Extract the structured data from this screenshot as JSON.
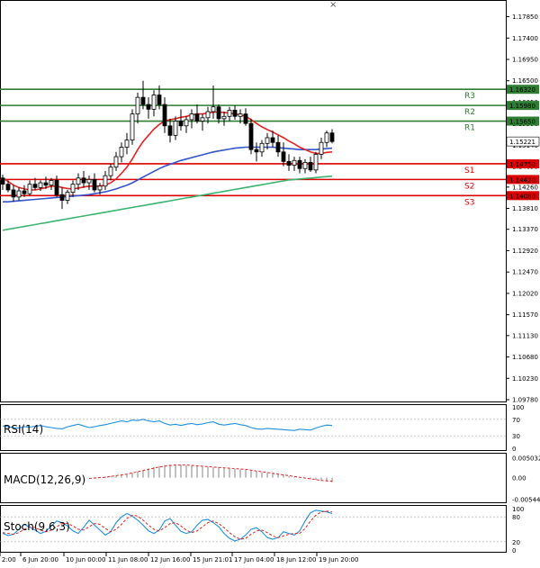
{
  "window_close": "×",
  "chart_data": [
    {
      "type": "candlestick",
      "panel": "price",
      "y_ticks": [
        "1.17850",
        "1.17400",
        "1.16950",
        "1.16500",
        "1.16050",
        "1.15590",
        "1.15140",
        "1.14690",
        "1.14260",
        "1.13810",
        "1.13370",
        "1.12920",
        "1.12470",
        "1.12020",
        "1.11570",
        "1.11130",
        "1.10680",
        "1.10230",
        "1.09780"
      ],
      "ylim": [
        1.0978,
        1.1805
      ],
      "current_price": "1.15221",
      "levels": [
        {
          "name": "R3",
          "tag": "1.16320",
          "value": 1.1632,
          "color": "#2e7d32"
        },
        {
          "name": "R2",
          "tag": "1.15980",
          "value": 1.1598,
          "color": "#2e7d32"
        },
        {
          "name": "R1",
          "tag": "1.15650",
          "value": 1.1565,
          "color": "#2e7d32"
        },
        {
          "name": "S1",
          "tag": "1.14750",
          "value": 1.1475,
          "color": "#dd0000"
        },
        {
          "name": "S2",
          "tag": "1.14420",
          "value": 1.1442,
          "color": "#dd0000"
        },
        {
          "name": "S3",
          "tag": "1.14080",
          "value": 1.1408,
          "color": "#dd0000"
        }
      ],
      "candles": [
        [
          1.1445,
          1.1452,
          1.142,
          1.1432
        ],
        [
          1.1432,
          1.144,
          1.1415,
          1.142
        ],
        [
          1.142,
          1.143,
          1.1395,
          1.1405
        ],
        [
          1.1405,
          1.1425,
          1.1398,
          1.1418
        ],
        [
          1.1418,
          1.143,
          1.1405,
          1.1412
        ],
        [
          1.1412,
          1.144,
          1.1408,
          1.1432
        ],
        [
          1.1432,
          1.1445,
          1.142,
          1.1425
        ],
        [
          1.1425,
          1.144,
          1.1418,
          1.1435
        ],
        [
          1.1435,
          1.1448,
          1.1422,
          1.143
        ],
        [
          1.143,
          1.1445,
          1.142,
          1.144
        ],
        [
          1.144,
          1.145,
          1.1405,
          1.141
        ],
        [
          1.141,
          1.1425,
          1.138,
          1.1398
        ],
        [
          1.1398,
          1.142,
          1.139,
          1.1415
        ],
        [
          1.1415,
          1.144,
          1.1405,
          1.1432
        ],
        [
          1.1432,
          1.1455,
          1.142,
          1.1445
        ],
        [
          1.1445,
          1.146,
          1.1425,
          1.1435
        ],
        [
          1.1435,
          1.145,
          1.142,
          1.1442
        ],
        [
          1.1442,
          1.1455,
          1.1415,
          1.142
        ],
        [
          1.142,
          1.1435,
          1.141,
          1.1428
        ],
        [
          1.1428,
          1.146,
          1.142,
          1.145
        ],
        [
          1.145,
          1.1475,
          1.144,
          1.1468
        ],
        [
          1.1468,
          1.15,
          1.146,
          1.149
        ],
        [
          1.149,
          1.152,
          1.1478,
          1.151
        ],
        [
          1.151,
          1.154,
          1.1495,
          1.1525
        ],
        [
          1.1525,
          1.159,
          1.1515,
          1.158
        ],
        [
          1.158,
          1.1625,
          1.156,
          1.1615
        ],
        [
          1.1615,
          1.165,
          1.159,
          1.16
        ],
        [
          1.16,
          1.1615,
          1.157,
          1.159
        ],
        [
          1.159,
          1.163,
          1.1575,
          1.162
        ],
        [
          1.162,
          1.164,
          1.159,
          1.16
        ],
        [
          1.16,
          1.1615,
          1.154,
          1.1555
        ],
        [
          1.1555,
          1.157,
          1.152,
          1.1535
        ],
        [
          1.1535,
          1.1575,
          1.1525,
          1.1565
        ],
        [
          1.1565,
          1.159,
          1.1545,
          1.1555
        ],
        [
          1.1555,
          1.1575,
          1.154,
          1.1568
        ],
        [
          1.1568,
          1.159,
          1.155,
          1.158
        ],
        [
          1.158,
          1.16,
          1.156,
          1.1565
        ],
        [
          1.1565,
          1.158,
          1.1545,
          1.1572
        ],
        [
          1.1572,
          1.1595,
          1.156,
          1.1585
        ],
        [
          1.1585,
          1.164,
          1.157,
          1.1595
        ],
        [
          1.1595,
          1.16,
          1.156,
          1.157
        ],
        [
          1.157,
          1.1585,
          1.1555,
          1.1575
        ],
        [
          1.1575,
          1.1595,
          1.1565,
          1.1588
        ],
        [
          1.1588,
          1.1598,
          1.1568,
          1.1575
        ],
        [
          1.1575,
          1.159,
          1.156,
          1.158
        ],
        [
          1.158,
          1.1592,
          1.1555,
          1.156
        ],
        [
          1.156,
          1.157,
          1.1495,
          1.1505
        ],
        [
          1.1505,
          1.152,
          1.148,
          1.15
        ],
        [
          1.15,
          1.1525,
          1.149,
          1.1518
        ],
        [
          1.1518,
          1.154,
          1.1505,
          1.153
        ],
        [
          1.153,
          1.1545,
          1.151,
          1.152
        ],
        [
          1.152,
          1.1535,
          1.149,
          1.15
        ],
        [
          1.15,
          1.152,
          1.147,
          1.148
        ],
        [
          1.148,
          1.1495,
          1.146,
          1.1472
        ],
        [
          1.1472,
          1.149,
          1.146,
          1.1482
        ],
        [
          1.1482,
          1.149,
          1.1455,
          1.1465
        ],
        [
          1.1465,
          1.1485,
          1.1455,
          1.1478
        ],
        [
          1.1478,
          1.149,
          1.1458,
          1.1462
        ],
        [
          1.1462,
          1.15,
          1.1455,
          1.1495
        ],
        [
          1.1495,
          1.153,
          1.1485,
          1.152
        ],
        [
          1.152,
          1.1545,
          1.151,
          1.154
        ],
        [
          1.154,
          1.1548,
          1.1518,
          1.1522
        ]
      ],
      "sma_fast": [
        1.1445,
        1.1438,
        1.143,
        1.1425,
        1.1422,
        1.142,
        1.142,
        1.1422,
        1.1425,
        1.1428,
        1.1428,
        1.1425,
        1.1423,
        1.1422,
        1.1424,
        1.1426,
        1.1428,
        1.1428,
        1.1428,
        1.143,
        1.1435,
        1.1443,
        1.1455,
        1.1468,
        1.1485,
        1.1505,
        1.1522,
        1.1535,
        1.1548,
        1.1558,
        1.1565,
        1.1568,
        1.157,
        1.1573,
        1.1575,
        1.1578,
        1.158,
        1.158,
        1.1582,
        1.1584,
        1.1584,
        1.1583,
        1.1582,
        1.158,
        1.1578,
        1.1575,
        1.1568,
        1.156,
        1.1553,
        1.1547,
        1.1542,
        1.1536,
        1.153,
        1.1523,
        1.1517,
        1.151,
        1.1505,
        1.15,
        1.1497,
        1.1497,
        1.1499,
        1.15
      ],
      "sma_mid": [
        1.1395,
        1.1395,
        1.1396,
        1.1397,
        1.1398,
        1.1399,
        1.14,
        1.1401,
        1.1402,
        1.1403,
        1.1404,
        1.1405,
        1.1406,
        1.1407,
        1.1408,
        1.1409,
        1.141,
        1.1412,
        1.1414,
        1.1416,
        1.1419,
        1.1422,
        1.1426,
        1.143,
        1.1435,
        1.1441,
        1.1447,
        1.1453,
        1.1459,
        1.1465,
        1.147,
        1.1474,
        1.1478,
        1.1482,
        1.1485,
        1.1488,
        1.1491,
        1.1494,
        1.1497,
        1.15,
        1.1502,
        1.1504,
        1.1506,
        1.1508,
        1.1509,
        1.151,
        1.151,
        1.151,
        1.151,
        1.151,
        1.151,
        1.1509,
        1.1508,
        1.1507,
        1.1506,
        1.1505,
        1.1505,
        1.1505,
        1.1505,
        1.1506,
        1.1507,
        1.1508
      ],
      "sma_slow": [
        1.1335,
        1.1337,
        1.1339,
        1.1341,
        1.1343,
        1.1345,
        1.1347,
        1.1349,
        1.1351,
        1.1353,
        1.1355,
        1.1357,
        1.1359,
        1.1361,
        1.1363,
        1.1365,
        1.1367,
        1.1369,
        1.1371,
        1.1373,
        1.1375,
        1.1377,
        1.1379,
        1.1381,
        1.1383,
        1.1385,
        1.1387,
        1.1389,
        1.1391,
        1.1393,
        1.1395,
        1.1397,
        1.1399,
        1.1401,
        1.1403,
        1.1405,
        1.1407,
        1.1409,
        1.1411,
        1.1413,
        1.1415,
        1.1417,
        1.1419,
        1.1421,
        1.1423,
        1.1425,
        1.1427,
        1.1429,
        1.1431,
        1.1433,
        1.1435,
        1.1437,
        1.1439,
        1.1441,
        1.1442,
        1.1443,
        1.1444,
        1.1445,
        1.1446,
        1.1447,
        1.1448,
        1.1449
      ]
    },
    {
      "type": "line",
      "panel": "rsi",
      "label": "RSI(14)",
      "y_ticks": [
        "100",
        "70",
        "30",
        "0"
      ],
      "ylim": [
        0,
        100
      ],
      "values": [
        54,
        52,
        50,
        49,
        52,
        51,
        53,
        55,
        52,
        50,
        48,
        47,
        52,
        55,
        58,
        54,
        50,
        52,
        55,
        57,
        60,
        63,
        66,
        64,
        68,
        67,
        70,
        66,
        64,
        66,
        60,
        56,
        58,
        55,
        58,
        60,
        57,
        59,
        62,
        64,
        58,
        56,
        58,
        60,
        57,
        55,
        50,
        47,
        46,
        48,
        47,
        46,
        45,
        44,
        43,
        46,
        45,
        44,
        49,
        53,
        56,
        55
      ]
    },
    {
      "type": "bar",
      "panel": "macd",
      "label": "MACD(12,26,9)",
      "y_ticks": [
        "0.005032",
        "0.00",
        "-0.005441"
      ],
      "ylim": [
        -0.0058,
        0.0054
      ],
      "values": [
        0.0,
        0.0001,
        0.0002,
        0.0003,
        0.0004,
        0.0005,
        0.0007,
        0.0009,
        0.0012,
        0.0015,
        0.0019,
        0.0023,
        0.0027,
        0.003,
        0.0032,
        0.0033,
        0.0033,
        0.0032,
        0.0031,
        0.003,
        0.0029,
        0.0028,
        0.0027,
        0.0026,
        0.0025,
        0.0024,
        0.0023,
        0.0022,
        0.0021,
        0.002,
        0.0018,
        0.0016,
        0.0014,
        0.0012,
        0.001,
        0.0008,
        0.0006,
        0.0004,
        0.0002,
        0.0,
        -0.0002,
        -0.0004,
        -0.0006,
        -0.0008,
        -0.001,
        -0.0012
      ],
      "signal": [
        -0.0002,
        -0.0001,
        0.0,
        0.0001,
        0.0003,
        0.0005,
        0.0007,
        0.0009,
        0.0012,
        0.0015,
        0.0018,
        0.0021,
        0.0024,
        0.0027,
        0.0029,
        0.0031,
        0.0032,
        0.0032,
        0.0032,
        0.0031,
        0.003,
        0.0029,
        0.0028,
        0.0027,
        0.0026,
        0.0025,
        0.0024,
        0.0023,
        0.0022,
        0.0021,
        0.0019,
        0.0017,
        0.0015,
        0.0013,
        0.0011,
        0.0009,
        0.0007,
        0.0005,
        0.0003,
        0.0001,
        -0.0001,
        -0.0003,
        -0.0005,
        -0.0007,
        -0.0008,
        -0.0009
      ]
    },
    {
      "type": "line",
      "panel": "stoch",
      "label": "Stoch(9,6,3)",
      "y_ticks": [
        "100",
        "80",
        "20",
        "0"
      ],
      "ylim": [
        0,
        100
      ],
      "k": [
        40,
        35,
        38,
        50,
        62,
        55,
        48,
        40,
        45,
        58,
        70,
        66,
        58,
        46,
        40,
        55,
        72,
        60,
        48,
        36,
        44,
        66,
        80,
        88,
        82,
        72,
        60,
        46,
        40,
        48,
        70,
        76,
        60,
        45,
        40,
        44,
        60,
        72,
        74,
        66,
        56,
        40,
        28,
        22,
        26,
        36,
        50,
        54,
        44,
        30,
        26,
        30,
        44,
        40,
        36,
        46,
        70,
        90,
        96,
        94,
        92,
        88
      ],
      "d": [
        42,
        40,
        38,
        42,
        50,
        56,
        54,
        48,
        44,
        48,
        56,
        64,
        64,
        58,
        50,
        48,
        56,
        64,
        62,
        52,
        44,
        50,
        62,
        76,
        84,
        82,
        72,
        60,
        50,
        46,
        54,
        64,
        66,
        58,
        48,
        42,
        46,
        56,
        66,
        70,
        64,
        54,
        42,
        32,
        26,
        28,
        38,
        46,
        48,
        42,
        34,
        30,
        34,
        38,
        40,
        40,
        52,
        70,
        84,
        92,
        94,
        92
      ]
    },
    {
      "type": "time_axis",
      "labels": [
        "2:00",
        "6 Jun 20:00",
        "10 Jun 00:00",
        "11 Jun 08:00",
        "12 Jun 16:00",
        "15 Jun 21:01",
        "17 Jun 04:00",
        "18 Jun 12:00",
        "19 Jun 20:00"
      ]
    }
  ]
}
